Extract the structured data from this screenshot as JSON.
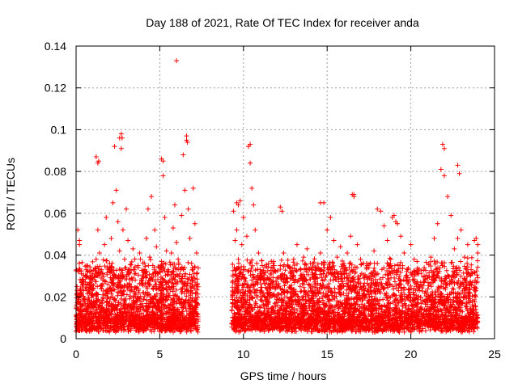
{
  "chart_data": {
    "type": "scatter",
    "title": "Day 188 of 2021, Rate Of TEC Index for receiver anda",
    "xlabel": "GPS time / hours",
    "ylabel": "ROTI / TECUs",
    "xlim": [
      0,
      25
    ],
    "ylim": [
      0,
      0.14
    ],
    "x_ticks": [
      "0",
      "5",
      "10",
      "15",
      "20",
      "25"
    ],
    "y_ticks": [
      "0",
      "0.02",
      "0.04",
      "0.06",
      "0.08",
      "0.1",
      "0.12",
      "0.14"
    ],
    "grid": true,
    "marker": "+",
    "color": "#ff0000",
    "series": [
      {
        "x": [
          0.05,
          0.1,
          0.15,
          0.2,
          0.25,
          0.3,
          0.35,
          0.4,
          0.5,
          0.6,
          0.7,
          0.8,
          0.9,
          1.0,
          1.1,
          1.2,
          1.3,
          1.35,
          1.4,
          1.5,
          1.6,
          1.7,
          1.8,
          1.9,
          2.0,
          2.1,
          2.2,
          2.3,
          2.4,
          2.5,
          2.6,
          2.7,
          2.75,
          2.8,
          2.9,
          3.0,
          3.1,
          3.2,
          3.3,
          3.4,
          3.5,
          3.6,
          3.7,
          3.8,
          3.9,
          4.0,
          4.1,
          4.2,
          4.3,
          4.4,
          4.5,
          4.6,
          4.7,
          4.8,
          4.9,
          5.0,
          5.1,
          5.2,
          5.3,
          5.4,
          5.5,
          5.6,
          5.7,
          5.8,
          5.9,
          6.0,
          6.1,
          6.2,
          6.3,
          6.4,
          6.5,
          6.6,
          6.7,
          6.8,
          6.9,
          7.0,
          7.1,
          7.2,
          9.4,
          9.5,
          9.6,
          9.7,
          9.8,
          9.9,
          10.0,
          10.1,
          10.2,
          10.3,
          10.4,
          10.5,
          10.6,
          10.7,
          10.8,
          10.9,
          11.0,
          11.2,
          11.4,
          11.6,
          11.8,
          12.0,
          12.2,
          12.4,
          12.6,
          12.8,
          13.0,
          13.2,
          13.4,
          13.6,
          13.8,
          14.0,
          14.2,
          14.4,
          14.6,
          14.8,
          15.0,
          15.2,
          15.4,
          15.6,
          15.8,
          16.0,
          16.2,
          16.4,
          16.6,
          16.8,
          17.0,
          17.2,
          17.4,
          17.6,
          17.8,
          18.0,
          18.2,
          18.4,
          18.6,
          18.8,
          19.0,
          19.2,
          19.4,
          19.6,
          19.8,
          20.0,
          20.2,
          20.4,
          20.6,
          20.8,
          21.0,
          21.2,
          21.4,
          21.6,
          21.8,
          22.0,
          22.2,
          22.4,
          22.6,
          22.8,
          23.0,
          23.2,
          23.4,
          23.6,
          23.8,
          24.0,
          6.0,
          2.6,
          2.7,
          6.6,
          6.65,
          10.4,
          21.9,
          22.0,
          22.8,
          22.9,
          1.2,
          1.3,
          5.1,
          5.2,
          4.5,
          16.5,
          16.6,
          14.6,
          18.0,
          18.9,
          19.1,
          12.2,
          12.3,
          9.6,
          9.7,
          0.1,
          0.2,
          23.9,
          24.0
        ],
        "y": [
          0.021,
          0.018,
          0.032,
          0.045,
          0.024,
          0.012,
          0.016,
          0.028,
          0.019,
          0.033,
          0.014,
          0.022,
          0.025,
          0.031,
          0.017,
          0.038,
          0.052,
          0.085,
          0.041,
          0.029,
          0.021,
          0.045,
          0.058,
          0.026,
          0.036,
          0.048,
          0.065,
          0.092,
          0.071,
          0.056,
          0.042,
          0.098,
          0.096,
          0.052,
          0.038,
          0.062,
          0.047,
          0.033,
          0.025,
          0.043,
          0.031,
          0.024,
          0.035,
          0.041,
          0.028,
          0.022,
          0.033,
          0.048,
          0.062,
          0.039,
          0.029,
          0.024,
          0.052,
          0.044,
          0.031,
          0.026,
          0.037,
          0.085,
          0.058,
          0.042,
          0.033,
          0.028,
          0.041,
          0.053,
          0.064,
          0.046,
          0.038,
          0.031,
          0.059,
          0.088,
          0.071,
          0.095,
          0.062,
          0.048,
          0.036,
          0.072,
          0.055,
          0.041,
          0.061,
          0.047,
          0.052,
          0.038,
          0.066,
          0.045,
          0.058,
          0.033,
          0.049,
          0.092,
          0.084,
          0.072,
          0.064,
          0.052,
          0.036,
          0.041,
          0.033,
          0.028,
          0.024,
          0.031,
          0.037,
          0.029,
          0.035,
          0.041,
          0.027,
          0.032,
          0.038,
          0.045,
          0.033,
          0.039,
          0.043,
          0.036,
          0.029,
          0.034,
          0.041,
          0.065,
          0.052,
          0.058,
          0.047,
          0.039,
          0.044,
          0.036,
          0.041,
          0.049,
          0.069,
          0.045,
          0.038,
          0.029,
          0.035,
          0.031,
          0.042,
          0.036,
          0.061,
          0.054,
          0.047,
          0.038,
          0.059,
          0.055,
          0.049,
          0.041,
          0.033,
          0.045,
          0.038,
          0.031,
          0.026,
          0.034,
          0.029,
          0.039,
          0.048,
          0.055,
          0.081,
          0.078,
          0.068,
          0.059,
          0.043,
          0.048,
          0.052,
          0.039,
          0.045,
          0.033,
          0.047,
          0.041,
          0.133,
          0.096,
          0.091,
          0.097,
          0.094,
          0.093,
          0.093,
          0.091,
          0.083,
          0.079,
          0.087,
          0.084,
          0.086,
          0.078,
          0.068,
          0.069,
          0.068,
          0.065,
          0.062,
          0.058,
          0.056,
          0.063,
          0.061,
          0.065,
          0.064,
          0.052,
          0.047,
          0.048,
          0.045
        ]
      }
    ]
  }
}
